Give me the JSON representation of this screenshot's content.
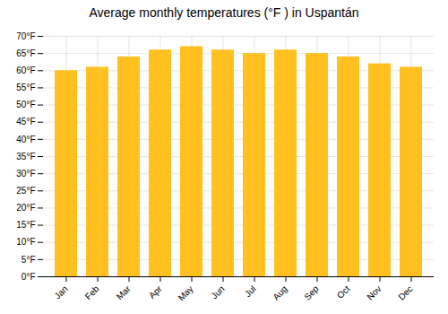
{
  "chart_data": {
    "type": "bar",
    "title": "Average monthly temperatures (°F ) in Uspantán",
    "categories": [
      "Jan",
      "Feb",
      "Mar",
      "Apr",
      "May",
      "Jun",
      "Jul",
      "Aug",
      "Sep",
      "Oct",
      "Nov",
      "Dec"
    ],
    "values": [
      60,
      61,
      64,
      66,
      67,
      66,
      65,
      66,
      65,
      64,
      62,
      61
    ],
    "color": "#FFC020",
    "ylim": [
      0,
      70
    ],
    "yticks": [
      {
        "value": 0,
        "label": "0°F"
      },
      {
        "value": 5,
        "label": "5°F"
      },
      {
        "value": 10,
        "label": "10°F"
      },
      {
        "value": 15,
        "label": "15°F"
      },
      {
        "value": 20,
        "label": "20°F"
      },
      {
        "value": 25,
        "label": "25°F"
      },
      {
        "value": 30,
        "label": "30°F"
      },
      {
        "value": 35,
        "label": "35°F"
      },
      {
        "value": 40,
        "label": "40°F"
      },
      {
        "value": 45,
        "label": "45°F"
      },
      {
        "value": 50,
        "label": "50°F"
      },
      {
        "value": 55,
        "label": "55°F"
      },
      {
        "value": 60,
        "label": "60°F"
      },
      {
        "value": 65,
        "label": "65°F"
      },
      {
        "value": 70,
        "label": "70°F"
      }
    ],
    "grid": true
  }
}
